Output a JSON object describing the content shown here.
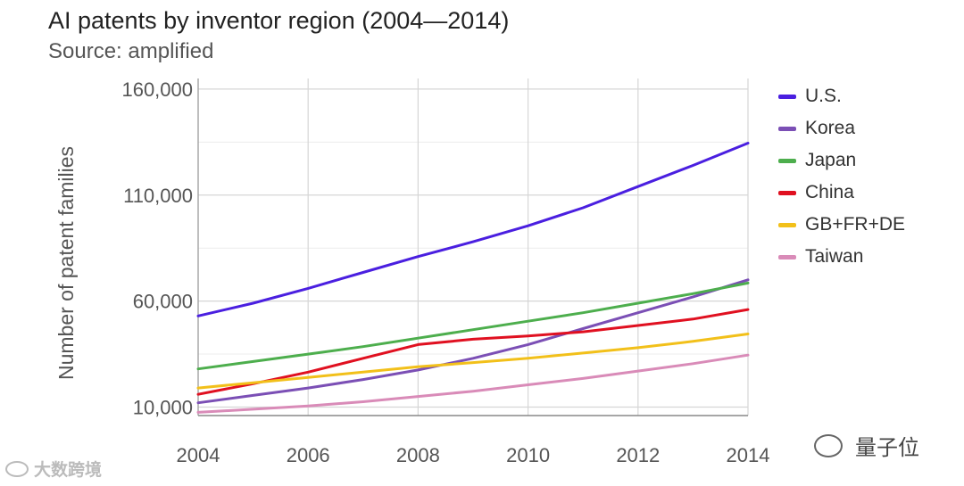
{
  "title": "AI patents by inventor region (2004—2014)",
  "subtitle": "Source: amplified",
  "chart_data": {
    "type": "line",
    "title": "AI patents by inventor region (2004—2014)",
    "subtitle": "Source: amplified",
    "xlabel": "",
    "ylabel": "Number of patent families",
    "x": [
      2004,
      2005,
      2006,
      2007,
      2008,
      2009,
      2010,
      2011,
      2012,
      2013,
      2014
    ],
    "xticks": [
      "2004",
      "2006",
      "2008",
      "2010",
      "2012",
      "2014"
    ],
    "xtick_values": [
      2004,
      2006,
      2008,
      2010,
      2012,
      2014
    ],
    "yticks": [
      "160,000",
      "110,000",
      "60,000",
      "10,000"
    ],
    "ytick_values": [
      160000,
      110000,
      60000,
      10000
    ],
    "xlim": [
      2004,
      2014
    ],
    "ylim": [
      6000,
      165000
    ],
    "grid": true,
    "legend_position": "right",
    "series": [
      {
        "name": "U.S.",
        "color": "#4A1FE0",
        "values": [
          53000,
          59000,
          66000,
          73500,
          81000,
          88000,
          95500,
          104000,
          114000,
          124000,
          134500
        ]
      },
      {
        "name": "Korea",
        "color": "#7B4FB5",
        "values": [
          12000,
          15500,
          19000,
          23000,
          27500,
          33000,
          39500,
          47000,
          54500,
          62000,
          70000
        ]
      },
      {
        "name": "Japan",
        "color": "#4DAE4D",
        "values": [
          28000,
          31500,
          35000,
          38500,
          42500,
          46500,
          50500,
          54500,
          59000,
          63500,
          68500
        ]
      },
      {
        "name": "China",
        "color": "#E01020",
        "values": [
          16000,
          21000,
          26500,
          33000,
          39500,
          42000,
          43500,
          45500,
          48500,
          51500,
          56000
        ]
      },
      {
        "name": "GB+FR+DE",
        "color": "#F2C01A",
        "values": [
          19000,
          21500,
          24000,
          26500,
          29000,
          31000,
          33000,
          35500,
          38000,
          41000,
          44500
        ]
      },
      {
        "name": "Taiwan",
        "color": "#D98BB8",
        "values": [
          7500,
          9000,
          10500,
          12500,
          15000,
          17500,
          20500,
          23500,
          27000,
          30500,
          34500
        ]
      }
    ]
  },
  "watermarks": {
    "left": "大数跨境",
    "right": "量子位"
  }
}
